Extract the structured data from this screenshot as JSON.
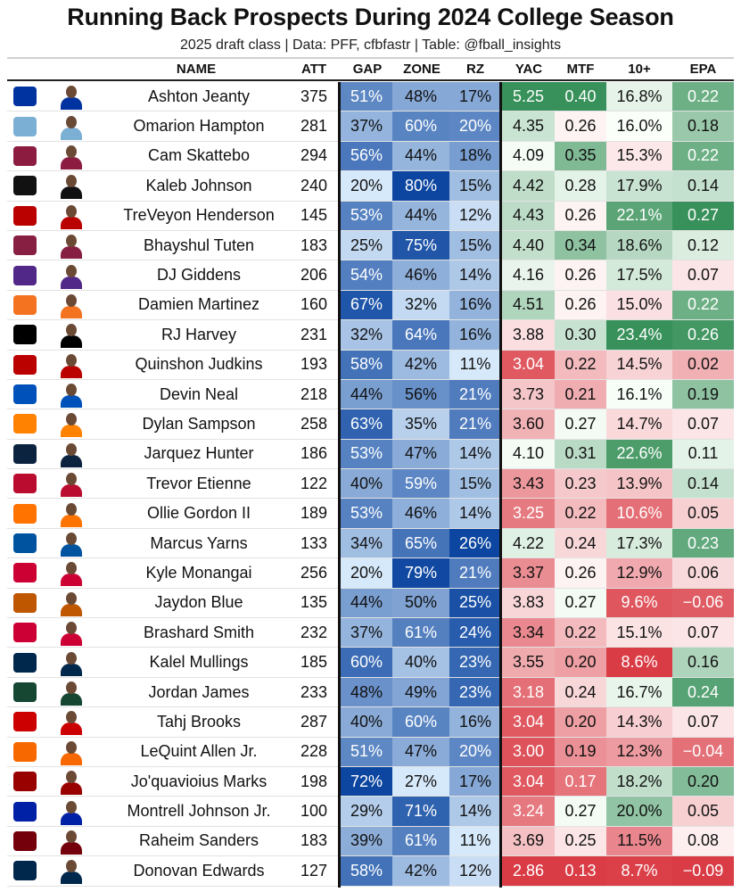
{
  "title": "Running Back Prospects During 2024 College Season",
  "subtitle": "2025 draft class | Data: PFF, cfbfastr | Table: @fball_insights",
  "chart_data": {
    "type": "table",
    "columns": [
      "NAME",
      "ATT",
      "GAP",
      "ZONE",
      "RZ",
      "YAC",
      "MTF",
      "10+",
      "EPA"
    ],
    "rows": [
      {
        "name": "Ashton Jeanty",
        "team_icon": "boise-state-logo-icon",
        "logo_color": "#0033a0",
        "att": "375",
        "gap": "51%",
        "zone": "48%",
        "rz": "17%",
        "yac": "5.25",
        "mtf": "0.40",
        "ten": "16.8%",
        "epa": "0.22"
      },
      {
        "name": "Omarion Hampton",
        "team_icon": "north-carolina-logo-icon",
        "logo_color": "#7bafd4",
        "att": "281",
        "gap": "37%",
        "zone": "60%",
        "rz": "20%",
        "yac": "4.35",
        "mtf": "0.26",
        "ten": "16.0%",
        "epa": "0.18"
      },
      {
        "name": "Cam Skattebo",
        "team_icon": "arizona-state-logo-icon",
        "logo_color": "#8c1d40",
        "att": "294",
        "gap": "56%",
        "zone": "44%",
        "rz": "18%",
        "yac": "4.09",
        "mtf": "0.35",
        "ten": "15.3%",
        "epa": "0.22"
      },
      {
        "name": "Kaleb Johnson",
        "team_icon": "iowa-logo-icon",
        "logo_color": "#111111",
        "att": "240",
        "gap": "20%",
        "zone": "80%",
        "rz": "15%",
        "yac": "4.42",
        "mtf": "0.28",
        "ten": "17.9%",
        "epa": "0.14"
      },
      {
        "name": "TreVeyon Henderson",
        "team_icon": "ohio-state-logo-icon",
        "logo_color": "#bb0000",
        "att": "145",
        "gap": "53%",
        "zone": "44%",
        "rz": "12%",
        "yac": "4.43",
        "mtf": "0.26",
        "ten": "22.1%",
        "epa": "0.27"
      },
      {
        "name": "Bhayshul Tuten",
        "team_icon": "virginia-tech-logo-icon",
        "logo_color": "#861f41",
        "att": "183",
        "gap": "25%",
        "zone": "75%",
        "rz": "15%",
        "yac": "4.40",
        "mtf": "0.34",
        "ten": "18.6%",
        "epa": "0.12"
      },
      {
        "name": "DJ Giddens",
        "team_icon": "kansas-state-logo-icon",
        "logo_color": "#512888",
        "att": "206",
        "gap": "54%",
        "zone": "46%",
        "rz": "14%",
        "yac": "4.16",
        "mtf": "0.26",
        "ten": "17.5%",
        "epa": "0.07"
      },
      {
        "name": "Damien Martinez",
        "team_icon": "miami-logo-icon",
        "logo_color": "#f47321",
        "att": "160",
        "gap": "67%",
        "zone": "32%",
        "rz": "16%",
        "yac": "4.51",
        "mtf": "0.26",
        "ten": "15.0%",
        "epa": "0.22"
      },
      {
        "name": "RJ Harvey",
        "team_icon": "ucf-logo-icon",
        "logo_color": "#000000",
        "att": "231",
        "gap": "32%",
        "zone": "64%",
        "rz": "16%",
        "yac": "3.88",
        "mtf": "0.30",
        "ten": "23.4%",
        "epa": "0.26"
      },
      {
        "name": "Quinshon Judkins",
        "team_icon": "ohio-state-logo-icon",
        "logo_color": "#bb0000",
        "att": "193",
        "gap": "58%",
        "zone": "42%",
        "rz": "11%",
        "yac": "3.04",
        "mtf": "0.22",
        "ten": "14.5%",
        "epa": "0.02"
      },
      {
        "name": "Devin Neal",
        "team_icon": "kansas-logo-icon",
        "logo_color": "#0051ba",
        "att": "218",
        "gap": "44%",
        "zone": "56%",
        "rz": "21%",
        "yac": "3.73",
        "mtf": "0.21",
        "ten": "16.1%",
        "epa": "0.19"
      },
      {
        "name": "Dylan Sampson",
        "team_icon": "tennessee-logo-icon",
        "logo_color": "#ff8200",
        "att": "258",
        "gap": "63%",
        "zone": "35%",
        "rz": "21%",
        "yac": "3.60",
        "mtf": "0.27",
        "ten": "14.7%",
        "epa": "0.07"
      },
      {
        "name": "Jarquez Hunter",
        "team_icon": "auburn-logo-icon",
        "logo_color": "#0c2340",
        "att": "186",
        "gap": "53%",
        "zone": "47%",
        "rz": "14%",
        "yac": "4.10",
        "mtf": "0.31",
        "ten": "22.6%",
        "epa": "0.11"
      },
      {
        "name": "Trevor Etienne",
        "team_icon": "georgia-logo-icon",
        "logo_color": "#ba0c2f",
        "att": "122",
        "gap": "40%",
        "zone": "59%",
        "rz": "15%",
        "yac": "3.43",
        "mtf": "0.23",
        "ten": "13.9%",
        "epa": "0.14"
      },
      {
        "name": "Ollie Gordon II",
        "team_icon": "oklahoma-state-logo-icon",
        "logo_color": "#ff7300",
        "att": "189",
        "gap": "53%",
        "zone": "46%",
        "rz": "14%",
        "yac": "3.25",
        "mtf": "0.22",
        "ten": "10.6%",
        "epa": "0.05"
      },
      {
        "name": "Marcus Yarns",
        "team_icon": "delaware-logo-icon",
        "logo_color": "#00539f",
        "att": "133",
        "gap": "34%",
        "zone": "65%",
        "rz": "26%",
        "yac": "4.22",
        "mtf": "0.24",
        "ten": "17.3%",
        "epa": "0.23"
      },
      {
        "name": "Kyle Monangai",
        "team_icon": "rutgers-logo-icon",
        "logo_color": "#cc0033",
        "att": "256",
        "gap": "20%",
        "zone": "79%",
        "rz": "21%",
        "yac": "3.37",
        "mtf": "0.26",
        "ten": "12.9%",
        "epa": "0.06"
      },
      {
        "name": "Jaydon Blue",
        "team_icon": "texas-logo-icon",
        "logo_color": "#bf5700",
        "att": "135",
        "gap": "44%",
        "zone": "50%",
        "rz": "25%",
        "yac": "3.83",
        "mtf": "0.27",
        "ten": "9.6%",
        "epa": "−0.06"
      },
      {
        "name": "Brashard Smith",
        "team_icon": "smu-logo-icon",
        "logo_color": "#cc0035",
        "att": "232",
        "gap": "37%",
        "zone": "61%",
        "rz": "24%",
        "yac": "3.34",
        "mtf": "0.22",
        "ten": "15.1%",
        "epa": "0.07"
      },
      {
        "name": "Kalel Mullings",
        "team_icon": "michigan-logo-icon",
        "logo_color": "#00274c",
        "att": "185",
        "gap": "60%",
        "zone": "40%",
        "rz": "23%",
        "yac": "3.55",
        "mtf": "0.20",
        "ten": "8.6%",
        "epa": "0.16"
      },
      {
        "name": "Jordan James",
        "team_icon": "oregon-logo-icon",
        "logo_color": "#154733",
        "att": "233",
        "gap": "48%",
        "zone": "49%",
        "rz": "23%",
        "yac": "3.18",
        "mtf": "0.24",
        "ten": "16.7%",
        "epa": "0.24"
      },
      {
        "name": "Tahj Brooks",
        "team_icon": "texas-tech-logo-icon",
        "logo_color": "#cc0000",
        "att": "287",
        "gap": "40%",
        "zone": "60%",
        "rz": "16%",
        "yac": "3.04",
        "mtf": "0.20",
        "ten": "14.3%",
        "epa": "0.07"
      },
      {
        "name": "LeQuint Allen Jr.",
        "team_icon": "syracuse-logo-icon",
        "logo_color": "#f76900",
        "att": "228",
        "gap": "51%",
        "zone": "47%",
        "rz": "20%",
        "yac": "3.00",
        "mtf": "0.19",
        "ten": "12.3%",
        "epa": "−0.04"
      },
      {
        "name": "Jo'quavioius Marks",
        "team_icon": "usc-logo-icon",
        "logo_color": "#990000",
        "att": "198",
        "gap": "72%",
        "zone": "27%",
        "rz": "17%",
        "yac": "3.04",
        "mtf": "0.17",
        "ten": "18.2%",
        "epa": "0.20"
      },
      {
        "name": "Montrell Johnson Jr.",
        "team_icon": "florida-logo-icon",
        "logo_color": "#0021a5",
        "att": "100",
        "gap": "29%",
        "zone": "71%",
        "rz": "14%",
        "yac": "3.24",
        "mtf": "0.27",
        "ten": "20.0%",
        "epa": "0.05"
      },
      {
        "name": "Raheim Sanders",
        "team_icon": "south-carolina-logo-icon",
        "logo_color": "#73000a",
        "att": "183",
        "gap": "39%",
        "zone": "61%",
        "rz": "11%",
        "yac": "3.69",
        "mtf": "0.25",
        "ten": "11.5%",
        "epa": "0.08"
      },
      {
        "name": "Donovan Edwards",
        "team_icon": "michigan-logo-icon",
        "logo_color": "#00274c",
        "att": "127",
        "gap": "58%",
        "zone": "42%",
        "rz": "12%",
        "yac": "2.86",
        "mtf": "0.13",
        "ten": "8.7%",
        "epa": "−0.09"
      }
    ]
  }
}
